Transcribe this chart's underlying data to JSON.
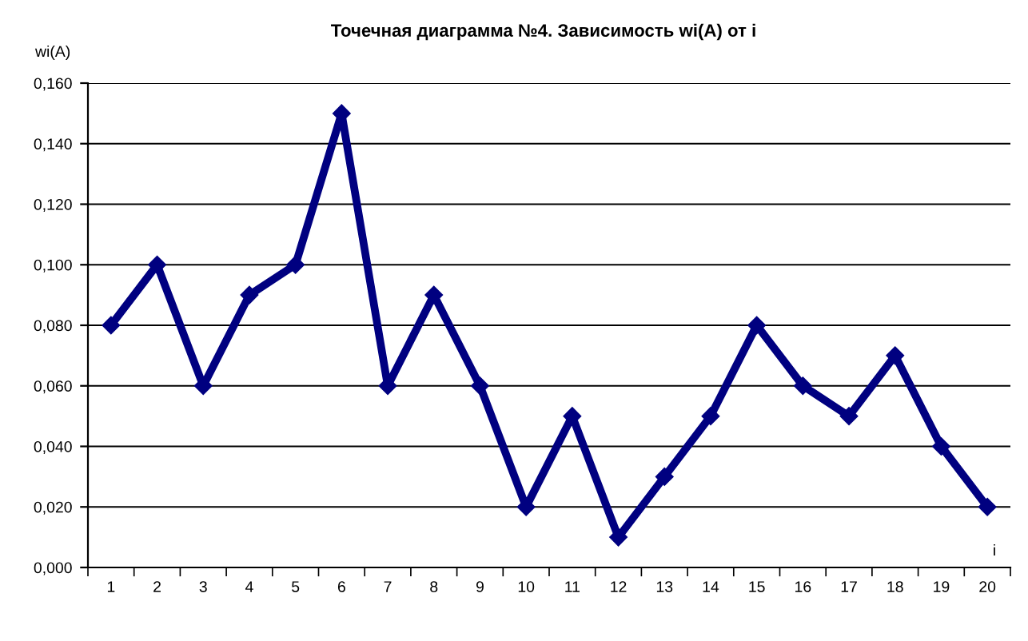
{
  "chart_data": {
    "type": "line",
    "title": "Точечная диаграмма №4. Зависимость wi(A) от i",
    "xlabel": "i",
    "ylabel": "wi(A)",
    "categories": [
      "1",
      "2",
      "3",
      "4",
      "5",
      "6",
      "7",
      "8",
      "9",
      "10",
      "11",
      "12",
      "13",
      "14",
      "15",
      "16",
      "17",
      "18",
      "19",
      "20"
    ],
    "series": [
      {
        "color": "#000080",
        "values": [
          0.08,
          0.1,
          0.06,
          0.09,
          0.1,
          0.15,
          0.06,
          0.09,
          0.06,
          0.02,
          0.05,
          0.01,
          0.03,
          0.05,
          0.08,
          0.06,
          0.05,
          0.07,
          0.04,
          0.02
        ]
      }
    ],
    "ylim": [
      0,
      0.16
    ],
    "yticks": [
      {
        "value": 0,
        "label": "0,000"
      },
      {
        "value": 0.02,
        "label": "0,020"
      },
      {
        "value": 0.04,
        "label": "0,040"
      },
      {
        "value": 0.06,
        "label": "0,060"
      },
      {
        "value": 0.08,
        "label": "0,080"
      },
      {
        "value": 0.1,
        "label": "0,100"
      },
      {
        "value": 0.12,
        "label": "0,120"
      },
      {
        "value": 0.14,
        "label": "0,140"
      },
      {
        "value": 0.16,
        "label": "0,160"
      }
    ],
    "grid": "y",
    "marker": "diamond",
    "line_style": "solid",
    "legend": false
  }
}
